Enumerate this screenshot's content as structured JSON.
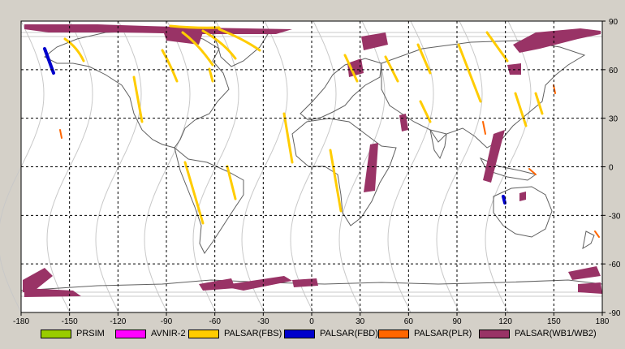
{
  "map": {
    "x_ticks": [
      "-180",
      "-150",
      "-120",
      "-90",
      "-60",
      "-30",
      "0",
      "30",
      "60",
      "90",
      "120",
      "150",
      "180"
    ],
    "y_ticks": [
      "90",
      "60",
      "30",
      "0",
      "-30",
      "-60",
      "-90"
    ],
    "lon_range": [
      -180,
      180
    ],
    "lat_range": [
      -90,
      90
    ],
    "colors": {
      "background": "#ffffff",
      "grid": "#000000",
      "coastline": "#606060",
      "orbit": "#c8c8c8",
      "frame": "#000000"
    }
  },
  "legend": [
    {
      "label": "PRSIM",
      "color": "#99cc00"
    },
    {
      "label": "AVNIR-2",
      "color": "#ff00ff"
    },
    {
      "label": "PALSAR(FBS)",
      "color": "#ffcc00"
    },
    {
      "label": "PALSAR(FBD)",
      "color": "#0000cc"
    },
    {
      "label": "PALSAR(PLR)",
      "color": "#ff6600"
    },
    {
      "label": "PALSAR(WB1/WB2)",
      "color": "#993366"
    }
  ]
}
